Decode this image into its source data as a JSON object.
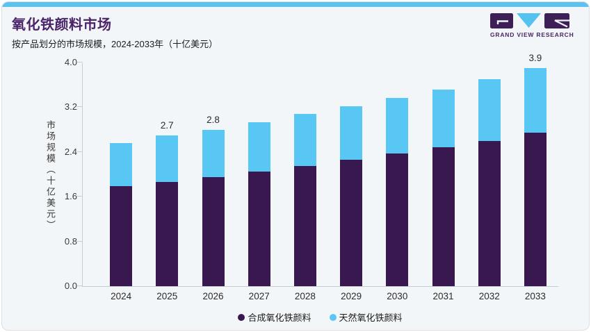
{
  "header": {
    "title": "氧化铁颜料市场",
    "subtitle": "按产品划分的市场规模，2024-2033年（十亿美元）"
  },
  "logo": {
    "name": "grand-view-research-logo",
    "text": "GRAND VIEW RESEARCH",
    "colors": {
      "block": "#3d1e56",
      "triangle": "#55c3f0"
    }
  },
  "colors": {
    "accent_bar": "#5ec2ef",
    "card_background": "#f2f6f9",
    "title": "#4b2369",
    "synthetic": "#38184f",
    "natural": "#58c7f3",
    "axis": "#c7cdd3"
  },
  "chart_data": {
    "type": "bar",
    "stacked": true,
    "title": "氧化铁颜料市场",
    "subtitle": "按产品划分的市场规模，2024-2033年（十亿美元）",
    "categories": [
      "2024",
      "2025",
      "2026",
      "2027",
      "2028",
      "2029",
      "2030",
      "2031",
      "2032",
      "2033"
    ],
    "series": [
      {
        "name": "合成氧化铁颜料",
        "color": "#38184f",
        "values": [
          1.79,
          1.87,
          1.95,
          2.05,
          2.15,
          2.26,
          2.37,
          2.48,
          2.6,
          2.74
        ]
      },
      {
        "name": "天然氧化铁颜料",
        "color": "#58c7f3",
        "values": [
          0.77,
          0.83,
          0.85,
          0.88,
          0.93,
          0.96,
          1.0,
          1.04,
          1.1,
          1.16
        ]
      }
    ],
    "totals": [
      2.56,
      2.7,
      2.8,
      2.93,
      3.08,
      3.22,
      3.37,
      3.52,
      3.7,
      3.9
    ],
    "bar_labels": [
      "",
      "2.7",
      "2.8",
      "",
      "",
      "",
      "",
      "",
      "",
      "3.9"
    ],
    "ylabel": "市场规模（十亿美元）",
    "yticks": [
      "0.0",
      "0.8",
      "1.6",
      "2.4",
      "3.2",
      "4.0"
    ],
    "ylim": [
      0,
      4.0
    ],
    "grid": false,
    "legend_position": "bottom"
  }
}
